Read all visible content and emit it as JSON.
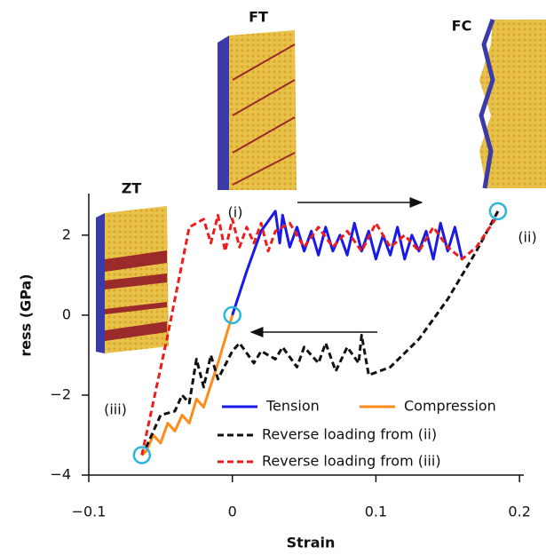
{
  "chart_data": {
    "type": "line",
    "x_label": "Strain",
    "y_label": "ress (GPa)",
    "xlim": [
      -0.1,
      0.203
    ],
    "ylim": [
      -4,
      3.04
    ],
    "xticks": [
      {
        "value": -0.1,
        "label": "−0.1"
      },
      0,
      0.1,
      0.2
    ],
    "yticks": [
      {
        "value": -4,
        "label": "−4"
      },
      {
        "value": -2,
        "label": "−2"
      },
      0,
      2
    ],
    "series": [
      {
        "name": "Tension",
        "color": "#1a1ae6",
        "dash": false,
        "x": [
          0,
          0.01,
          0.02,
          0.03,
          0.033,
          0.035,
          0.04,
          0.045,
          0.05,
          0.055,
          0.06,
          0.065,
          0.07,
          0.075,
          0.08,
          0.085,
          0.09,
          0.095,
          0.1,
          0.105,
          0.11,
          0.115,
          0.12,
          0.125,
          0.13,
          0.135,
          0.14,
          0.145,
          0.15,
          0.155,
          0.16
        ],
        "values": [
          0,
          1.1,
          2.1,
          2.6,
          1.8,
          2.5,
          1.7,
          2.2,
          1.6,
          2.1,
          1.5,
          2.2,
          1.6,
          2.0,
          1.5,
          2.3,
          1.6,
          2.1,
          1.4,
          2.0,
          1.5,
          2.2,
          1.4,
          2.0,
          1.6,
          2.1,
          1.4,
          2.3,
          1.6,
          2.2,
          1.4
        ]
      },
      {
        "name": "Compression",
        "color": "#ff8c1a",
        "dash": false,
        "x": [
          0,
          -0.01,
          -0.02,
          -0.025,
          -0.03,
          -0.035,
          -0.04,
          -0.045,
          -0.05,
          -0.055,
          -0.06,
          -0.063
        ],
        "values": [
          0,
          -1.2,
          -2.3,
          -2.1,
          -2.7,
          -2.5,
          -2.9,
          -2.7,
          -3.2,
          -3.0,
          -3.4,
          -3.5
        ]
      },
      {
        "name": "Reverse loading from (ii)",
        "color": "#111111",
        "dash": true,
        "x": [
          0.185,
          0.17,
          0.15,
          0.13,
          0.11,
          0.095,
          0.09,
          0.088,
          0.08,
          0.072,
          0.065,
          0.06,
          0.05,
          0.045,
          0.035,
          0.03,
          0.02,
          0.015,
          0.005,
          0,
          -0.01,
          -0.015,
          -0.02,
          -0.025,
          -0.03,
          -0.035,
          -0.04,
          -0.05,
          -0.06
        ],
        "values": [
          2.6,
          1.6,
          0.4,
          -0.6,
          -1.3,
          -1.5,
          -0.5,
          -1.2,
          -0.8,
          -1.4,
          -0.7,
          -1.2,
          -0.8,
          -1.3,
          -0.8,
          -1.1,
          -0.9,
          -1.2,
          -0.7,
          -0.9,
          -1.6,
          -1.0,
          -1.8,
          -1.1,
          -2.2,
          -2.0,
          -2.4,
          -2.5,
          -3.3
        ]
      },
      {
        "name": "Reverse loading from (iii)",
        "color": "#ee1c1c",
        "dash": true,
        "x": [
          -0.063,
          -0.045,
          -0.03,
          -0.02,
          -0.015,
          -0.01,
          -0.005,
          0,
          0.005,
          0.01,
          0.015,
          0.02,
          0.025,
          0.03,
          0.04,
          0.05,
          0.06,
          0.07,
          0.08,
          0.09,
          0.1,
          0.11,
          0.12,
          0.13,
          0.14,
          0.15,
          0.16,
          0.17,
          0.185
        ],
        "values": [
          -3.5,
          -0.5,
          2.2,
          2.4,
          1.8,
          2.5,
          1.6,
          2.4,
          1.7,
          2.2,
          1.8,
          2.3,
          1.6,
          2.1,
          2.3,
          1.7,
          2.2,
          1.7,
          2.1,
          1.6,
          2.3,
          1.7,
          2.0,
          1.6,
          2.2,
          1.7,
          1.4,
          1.7,
          2.5
        ]
      }
    ],
    "markers": {
      "color": "#29b6d8",
      "x": [
        0.185,
        0,
        -0.063
      ],
      "values": [
        2.6,
        0,
        -3.5
      ]
    },
    "annotations": [
      "(i)",
      "(ii)",
      "(iii)"
    ],
    "inset_labels": [
      "ZT",
      "FT",
      "FC"
    ]
  }
}
